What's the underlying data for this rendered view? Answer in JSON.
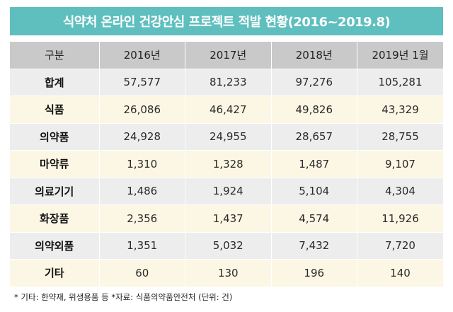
{
  "title": "식약처 온라인 건강안심 프로젝트 적발 현황(2016~2019.8)",
  "table": {
    "headers": [
      "구분",
      "2016년",
      "2017년",
      "2018년",
      "2019년 1월"
    ],
    "rows": [
      {
        "label": "합계",
        "values": [
          "57,577",
          "81,233",
          "97,276",
          "105,281"
        ]
      },
      {
        "label": "식품",
        "values": [
          "26,086",
          "46,427",
          "49,826",
          "43,329"
        ]
      },
      {
        "label": "의약품",
        "values": [
          "24,928",
          "24,955",
          "28,657",
          "28,755"
        ]
      },
      {
        "label": "마약류",
        "values": [
          "1,310",
          "1,328",
          "1,487",
          "9,107"
        ]
      },
      {
        "label": "의료기기",
        "values": [
          "1,486",
          "1,924",
          "5,104",
          "4,304"
        ]
      },
      {
        "label": "화장품",
        "values": [
          "2,356",
          "1,437",
          "4,574",
          "11,926"
        ]
      },
      {
        "label": "의약외품",
        "values": [
          "1,351",
          "5,032",
          "7,432",
          "7,720"
        ]
      },
      {
        "label": "기타",
        "values": [
          "60",
          "130",
          "196",
          "140"
        ]
      }
    ]
  },
  "footnote": "* 기타: 한약재, 위생용품 등 *자료: 식품의약품안전처 (단위: 건)",
  "colors": {
    "title_bg": "#5fbfbf",
    "header_bg": "#c9c9c9",
    "row_gray": "#ededed",
    "row_cream": "#fcf7e4"
  }
}
